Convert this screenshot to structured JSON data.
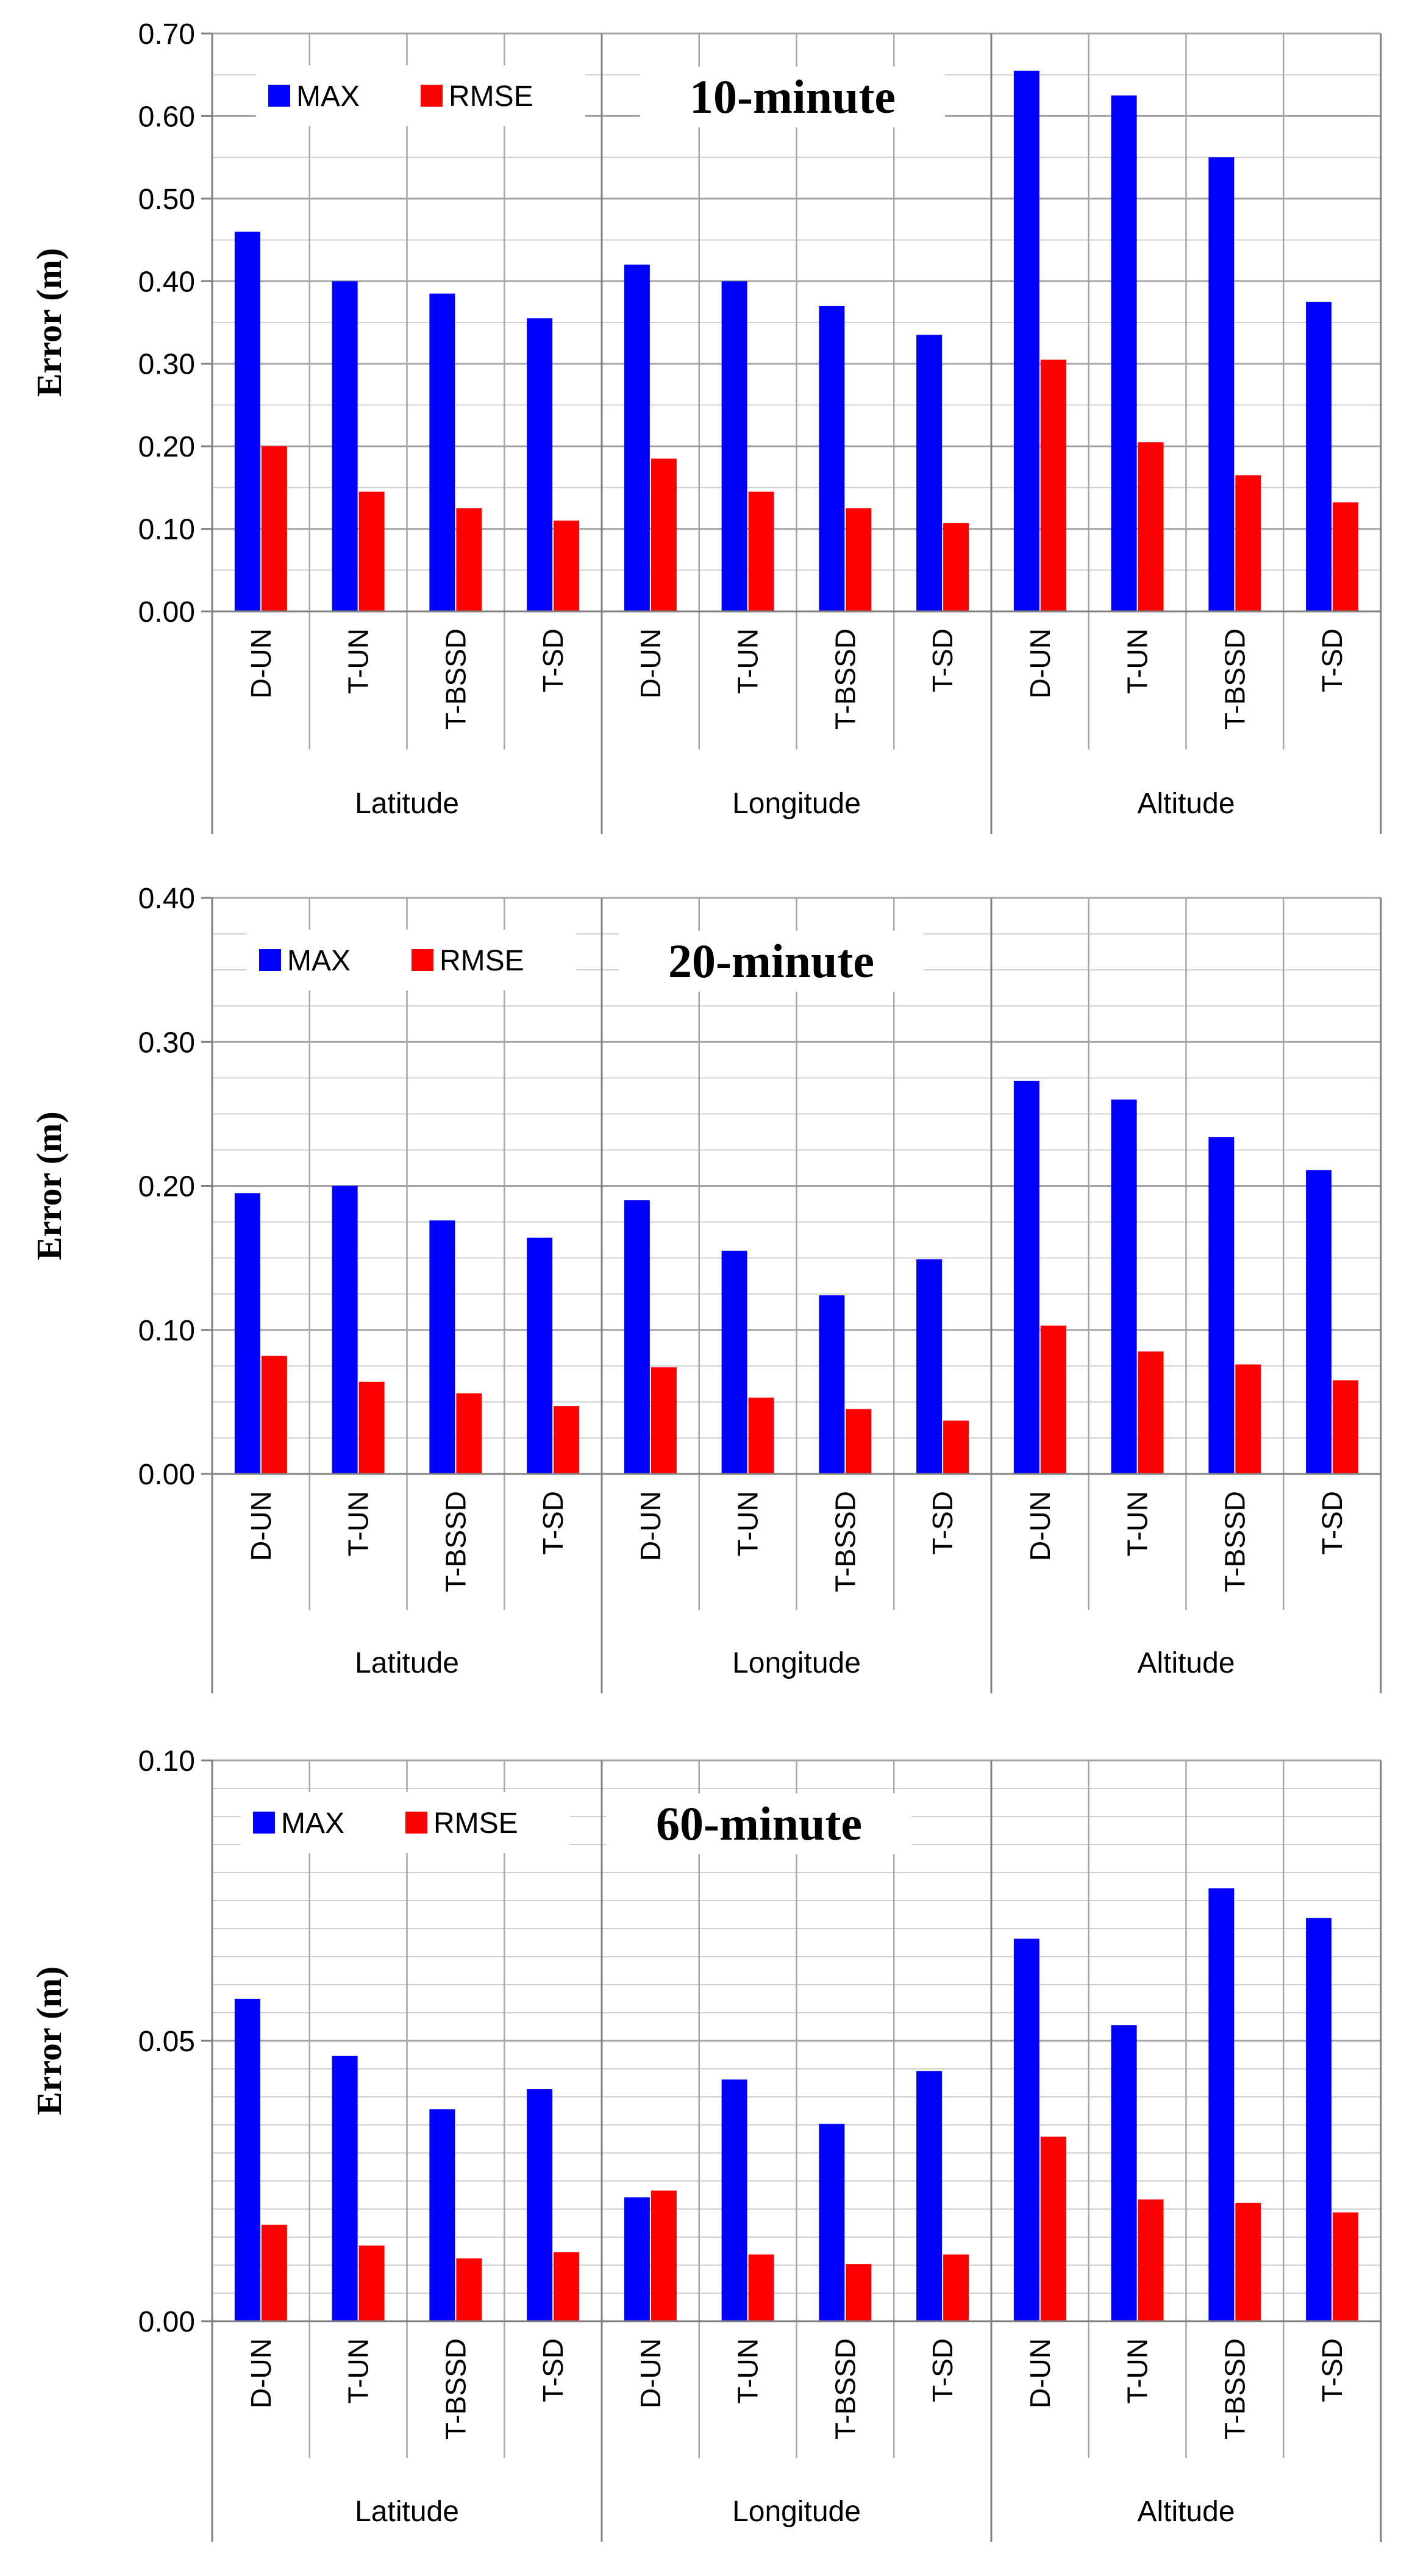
{
  "colors": {
    "max": "#0000FF",
    "rmse": "#FF0000",
    "grid": "#A6A6A6",
    "axis": "#808080",
    "text": "#000000"
  },
  "chart_data": [
    {
      "type": "bar",
      "title": "10-minute",
      "ylabel": "Error (m)",
      "xlabel": "",
      "ylim": [
        0,
        0.7
      ],
      "y_ticks": [
        "0.00",
        "0.10",
        "0.20",
        "0.30",
        "0.40",
        "0.50",
        "0.60",
        "0.70"
      ],
      "groups": [
        "Latitude",
        "Longitude",
        "Altitude"
      ],
      "categories": [
        "D-UN",
        "T-UN",
        "T-BSSD",
        "T-SD",
        "D-UN",
        "T-UN",
        "T-BSSD",
        "T-SD",
        "D-UN",
        "T-UN",
        "T-BSSD",
        "T-SD"
      ],
      "legend": {
        "position": "top-left",
        "entries": [
          "MAX",
          "RMSE"
        ]
      },
      "grid": true,
      "series": [
        {
          "name": "MAX",
          "values": [
            0.46,
            0.4,
            0.385,
            0.355,
            0.42,
            0.4,
            0.37,
            0.335,
            0.655,
            0.625,
            0.55,
            0.375
          ]
        },
        {
          "name": "RMSE",
          "values": [
            0.2,
            0.145,
            0.125,
            0.11,
            0.185,
            0.145,
            0.125,
            0.107,
            0.305,
            0.205,
            0.165,
            0.132
          ]
        }
      ]
    },
    {
      "type": "bar",
      "title": "20-minute",
      "ylabel": "Error (m)",
      "xlabel": "",
      "ylim": [
        0,
        0.4
      ],
      "y_ticks": [
        "0.00",
        "0.10",
        "0.20",
        "0.30",
        "0.40"
      ],
      "groups": [
        "Latitude",
        "Longitude",
        "Altitude"
      ],
      "categories": [
        "D-UN",
        "T-UN",
        "T-BSSD",
        "T-SD",
        "D-UN",
        "T-UN",
        "T-BSSD",
        "T-SD",
        "D-UN",
        "T-UN",
        "T-BSSD",
        "T-SD"
      ],
      "legend": {
        "position": "top-left",
        "entries": [
          "MAX",
          "RMSE"
        ]
      },
      "grid": true,
      "series": [
        {
          "name": "MAX",
          "values": [
            0.195,
            0.2,
            0.176,
            0.164,
            0.19,
            0.155,
            0.124,
            0.149,
            0.273,
            0.26,
            0.234,
            0.211
          ]
        },
        {
          "name": "RMSE",
          "values": [
            0.082,
            0.064,
            0.056,
            0.047,
            0.074,
            0.053,
            0.045,
            0.037,
            0.103,
            0.085,
            0.076,
            0.065
          ]
        }
      ]
    },
    {
      "type": "bar",
      "title": "60-minute",
      "ylabel": "Error (m)",
      "xlabel": "",
      "ylim": [
        0,
        0.1
      ],
      "y_ticks": [
        "0.00",
        "0.05",
        "0.10"
      ],
      "groups": [
        "Latitude",
        "Longitude",
        "Altitude"
      ],
      "categories": [
        "D-UN",
        "T-UN",
        "T-BSSD",
        "T-SD",
        "D-UN",
        "T-UN",
        "T-BSSD",
        "T-SD",
        "D-UN",
        "T-UN",
        "T-BSSD",
        "T-SD"
      ],
      "legend": {
        "position": "top-left",
        "entries": [
          "MAX",
          "RMSE"
        ]
      },
      "grid": true,
      "series": [
        {
          "name": "MAX",
          "values": [
            0.0575,
            0.0473,
            0.0378,
            0.0414,
            0.0221,
            0.0431,
            0.0352,
            0.0446,
            0.0682,
            0.0528,
            0.0772,
            0.0719
          ]
        },
        {
          "name": "RMSE",
          "values": [
            0.0172,
            0.0135,
            0.0112,
            0.0123,
            0.0233,
            0.0119,
            0.0102,
            0.0119,
            0.0329,
            0.0217,
            0.0211,
            0.0194
          ]
        }
      ]
    }
  ]
}
